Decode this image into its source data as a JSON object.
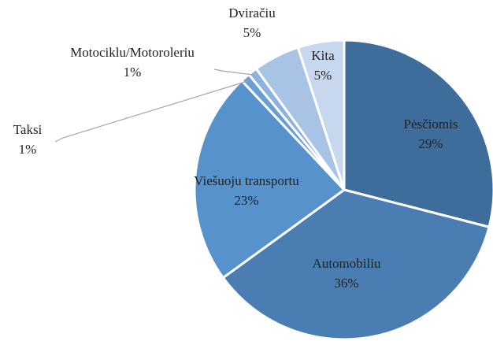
{
  "chart_data": {
    "type": "pie",
    "categories": [
      "Pėsčiomis",
      "Automobiliu",
      "Viešuoju transportu",
      "Taksi",
      "Motociklu/Motoroleriu",
      "Dviračiu",
      "Kita"
    ],
    "values": [
      29,
      36,
      23,
      1,
      1,
      5,
      5
    ],
    "value_labels": [
      "29%",
      "36%",
      "23%",
      "1%",
      "1%",
      "5%",
      "5%"
    ],
    "colors": [
      "#3f6d9b",
      "#4a7eb3",
      "#5792cd",
      "#6a9fd6",
      "#8cb3df",
      "#a9c3e5",
      "#c6d7ee"
    ]
  }
}
